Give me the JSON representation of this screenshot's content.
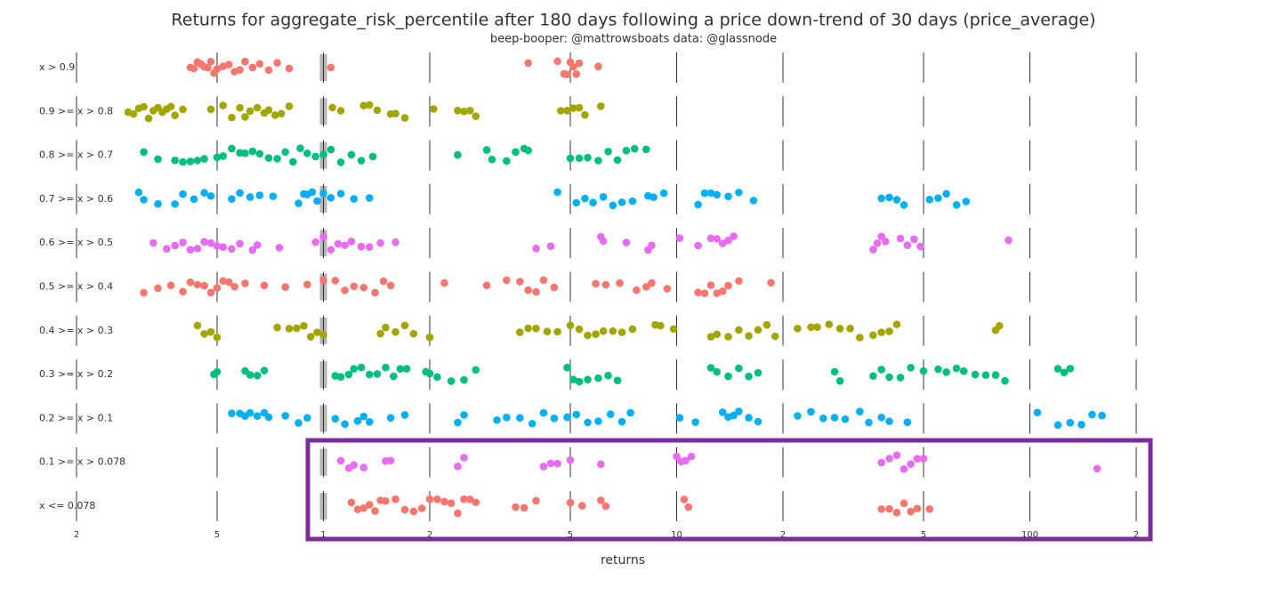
{
  "chart_data": {
    "type": "strip",
    "title": "Returns for aggregate_risk_percentile after 180 days following a price down-trend of 30 days (price_average)",
    "subtitle": "beep-booper: @mattrowsboats data: @glassnode",
    "x_label": "returns",
    "log_x": true,
    "xlim": [
      0.2,
      200
    ],
    "xticks": [
      {
        "value": 0.2,
        "label": "2"
      },
      {
        "value": 0.5,
        "label": "5"
      },
      1,
      2,
      5,
      10,
      {
        "value": 20,
        "label": "2"
      },
      {
        "value": 50,
        "label": "5"
      },
      100,
      {
        "value": 200,
        "label": "2"
      }
    ],
    "categories": [
      "x > 0.9",
      "0.9 >= x > 0.8",
      "0.8 >= x > 0.7",
      "0.7 >= x > 0.6",
      "0.6 >= x > 0.5",
      "0.5 >= x > 0.4",
      "0.4 >= x > 0.3",
      "0.3 >= x > 0.2",
      "0.2 >= x > 0.1",
      "0.1 >= x > 0.078",
      "x <= 0.078"
    ],
    "colors": [
      "#F8766D",
      "#A3A500",
      "#00BF7D",
      "#00B0F6",
      "#E76BF3",
      "#F8766D",
      "#A3A500",
      "#00BF7D",
      "#00B0F6",
      "#E76BF3",
      "#F8766D"
    ],
    "values": [
      [
        0.42,
        0.43,
        0.44,
        0.45,
        0.46,
        0.47,
        0.48,
        0.49,
        0.5,
        0.52,
        0.54,
        0.56,
        0.58,
        0.6,
        0.63,
        0.66,
        0.7,
        0.74,
        0.8,
        1.05,
        3.8,
        4.6,
        4.8,
        4.9,
        5,
        5.1,
        5.2,
        5.3,
        6.0
      ],
      [
        0.28,
        0.29,
        0.3,
        0.31,
        0.32,
        0.33,
        0.34,
        0.35,
        0.36,
        0.37,
        0.38,
        0.4,
        0.48,
        0.52,
        0.55,
        0.58,
        0.6,
        0.62,
        0.65,
        0.68,
        0.7,
        0.73,
        0.76,
        0.8,
        1.06,
        1.12,
        1.3,
        1.35,
        1.42,
        1.55,
        1.6,
        1.7,
        2.05,
        2.4,
        2.5,
        2.6,
        2.7,
        4.7,
        4.9,
        5.1,
        5.3,
        5.5,
        6.1
      ],
      [
        0.31,
        0.34,
        0.38,
        0.4,
        0.42,
        0.44,
        0.46,
        0.5,
        0.52,
        0.55,
        0.58,
        0.6,
        0.63,
        0.66,
        0.7,
        0.74,
        0.78,
        0.82,
        0.86,
        0.9,
        0.95,
        1.0,
        1.05,
        1.12,
        1.2,
        1.28,
        1.38,
        2.4,
        2.9,
        3.0,
        3.3,
        3.5,
        3.7,
        3.8,
        5.0,
        5.3,
        5.6,
        6.0,
        6.4,
        6.8,
        7.2,
        7.6,
        8.2
      ],
      [
        0.3,
        0.31,
        0.34,
        0.38,
        0.4,
        0.43,
        0.46,
        0.48,
        0.55,
        0.58,
        0.62,
        0.66,
        0.72,
        0.85,
        0.88,
        0.9,
        0.93,
        0.96,
        1.0,
        1.05,
        1.12,
        1.22,
        1.35,
        4.6,
        5.2,
        5.5,
        5.8,
        6.2,
        6.6,
        7.0,
        7.5,
        8.3,
        8.6,
        9.2,
        11.5,
        12,
        12.5,
        13,
        14,
        15,
        16.5,
        38,
        40,
        42,
        44,
        52,
        55,
        58,
        62,
        66
      ],
      [
        0.33,
        0.36,
        0.38,
        0.4,
        0.42,
        0.44,
        0.46,
        0.48,
        0.5,
        0.52,
        0.55,
        0.58,
        0.63,
        0.65,
        0.75,
        0.95,
        1.0,
        1.05,
        1.1,
        1.15,
        1.2,
        1.28,
        1.35,
        1.45,
        1.6,
        4.0,
        4.4,
        6.1,
        6.2,
        7.2,
        8.3,
        8.5,
        10.2,
        11.5,
        12.5,
        13,
        13.5,
        14,
        14.5,
        36,
        37,
        38,
        39,
        43,
        45,
        47,
        49,
        87
      ],
      [
        0.31,
        0.34,
        0.37,
        0.4,
        0.42,
        0.44,
        0.46,
        0.48,
        0.5,
        0.52,
        0.54,
        0.56,
        0.6,
        0.68,
        0.78,
        0.9,
        1.0,
        1.08,
        1.15,
        1.22,
        1.3,
        1.4,
        1.48,
        1.55,
        2.2,
        2.9,
        3.3,
        3.6,
        3.8,
        4.0,
        4.2,
        4.5,
        5.9,
        6.3,
        6.9,
        7.7,
        8.2,
        8.5,
        9.4,
        11.5,
        12,
        12.5,
        13,
        13.5,
        14,
        15,
        18.5
      ],
      [
        0.44,
        0.46,
        0.48,
        0.5,
        0.74,
        0.8,
        0.84,
        0.88,
        0.92,
        0.96,
        1.0,
        1.45,
        1.5,
        1.6,
        1.7,
        1.8,
        2.0,
        3.6,
        3.8,
        4.0,
        4.3,
        4.6,
        5.0,
        5.3,
        5.6,
        5.9,
        6.2,
        6.6,
        7.0,
        7.5,
        8.7,
        9.0,
        9.8,
        12.5,
        13,
        14,
        15,
        16,
        17,
        18,
        19,
        22,
        24,
        25,
        27,
        29,
        31,
        33,
        36,
        38,
        40,
        42,
        80,
        82
      ],
      [
        0.49,
        0.5,
        0.6,
        0.62,
        0.65,
        0.68,
        1.08,
        1.12,
        1.18,
        1.22,
        1.28,
        1.35,
        1.42,
        1.5,
        1.58,
        1.65,
        1.72,
        1.95,
        2.0,
        2.1,
        2.3,
        2.5,
        2.7,
        4.9,
        5.1,
        5.3,
        5.6,
        6.0,
        6.4,
        6.8,
        12.5,
        13,
        14,
        15,
        16,
        17,
        28,
        29,
        36,
        38,
        40,
        43,
        46,
        50,
        55,
        58,
        62,
        65,
        70,
        75,
        80,
        85,
        120,
        125,
        130
      ],
      [
        0.55,
        0.58,
        0.6,
        0.62,
        0.65,
        0.68,
        0.7,
        0.78,
        0.85,
        0.9,
        1.08,
        1.15,
        1.25,
        1.3,
        1.35,
        1.55,
        1.7,
        2.4,
        2.5,
        3.1,
        3.3,
        3.6,
        3.9,
        4.2,
        4.5,
        4.9,
        5.2,
        5.6,
        6.0,
        6.5,
        7.0,
        7.4,
        10.2,
        11.3,
        13.5,
        14,
        14.5,
        15,
        16,
        17,
        22,
        24,
        26,
        28,
        30,
        33,
        35,
        38,
        40,
        45,
        105,
        120,
        130,
        140,
        150,
        160
      ],
      [
        1.12,
        1.18,
        1.22,
        1.3,
        1.5,
        1.55,
        2.4,
        2.5,
        4.2,
        4.4,
        4.6,
        5.0,
        6.1,
        10.0,
        10.3,
        10.6,
        11.0,
        38,
        40,
        42,
        44,
        46,
        48,
        50,
        155
      ],
      [
        1.2,
        1.25,
        1.3,
        1.35,
        1.4,
        1.45,
        1.5,
        1.6,
        1.7,
        1.8,
        1.9,
        2.0,
        2.1,
        2.2,
        2.3,
        2.4,
        2.5,
        2.6,
        2.7,
        3.5,
        3.7,
        4.0,
        5.0,
        5.4,
        6.1,
        6.3,
        10.5,
        10.8,
        38,
        40,
        42,
        44,
        46,
        48,
        52
      ]
    ]
  }
}
